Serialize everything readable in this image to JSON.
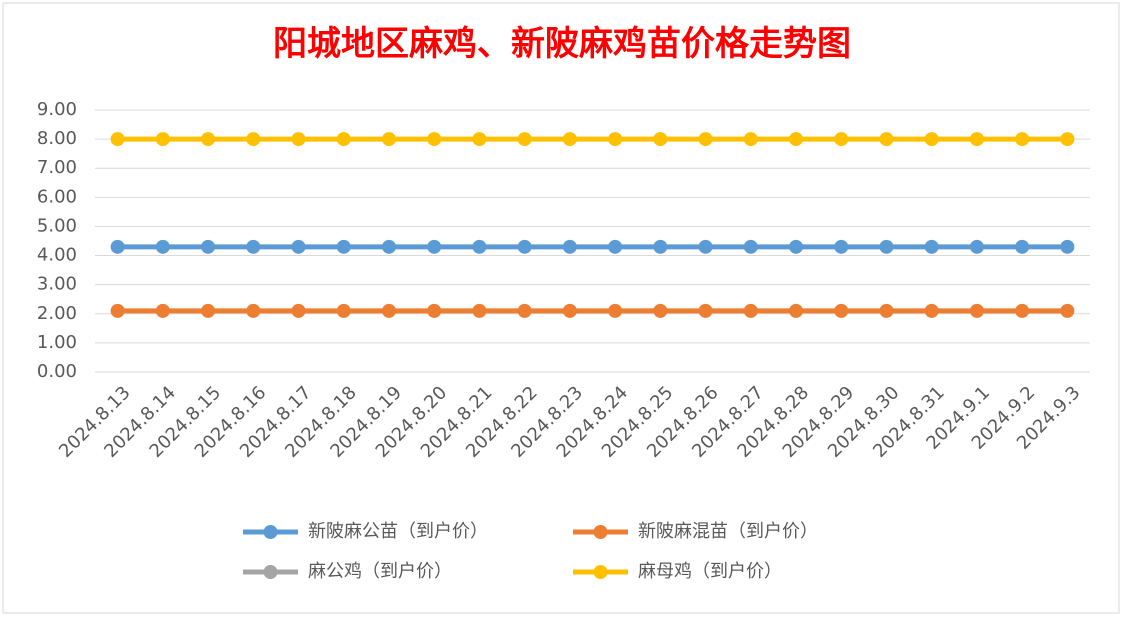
{
  "chart_data": {
    "type": "line",
    "title": "阳城地区麻鸡、新陂麻鸡苗价格走势图",
    "categories": [
      "2024.8.13",
      "2024.8.14",
      "2024.8.15",
      "2024.8.16",
      "2024.8.17",
      "2024.8.18",
      "2024.8.19",
      "2024.8.20",
      "2024.8.21",
      "2024.8.22",
      "2024.8.23",
      "2024.8.24",
      "2024.8.25",
      "2024.8.26",
      "2024.8.27",
      "2024.8.28",
      "2024.8.29",
      "2024.8.30",
      "2024.8.31",
      "2024.9.1",
      "2024.9.2",
      "2024.9.3"
    ],
    "series": [
      {
        "name": "新陂麻公苗（到户价）",
        "color": "#5b9bd5",
        "values": [
          4.3,
          4.3,
          4.3,
          4.3,
          4.3,
          4.3,
          4.3,
          4.3,
          4.3,
          4.3,
          4.3,
          4.3,
          4.3,
          4.3,
          4.3,
          4.3,
          4.3,
          4.3,
          4.3,
          4.3,
          4.3,
          4.3
        ]
      },
      {
        "name": "新陂麻混苗（到户价）",
        "color": "#ed7d31",
        "values": [
          2.1,
          2.1,
          2.1,
          2.1,
          2.1,
          2.1,
          2.1,
          2.1,
          2.1,
          2.1,
          2.1,
          2.1,
          2.1,
          2.1,
          2.1,
          2.1,
          2.1,
          2.1,
          2.1,
          2.1,
          2.1,
          2.1
        ]
      },
      {
        "name": "麻公鸡（到户价）",
        "color": "#a5a5a5",
        "values": [
          null,
          null,
          null,
          null,
          null,
          null,
          null,
          null,
          null,
          null,
          null,
          null,
          null,
          null,
          null,
          null,
          null,
          null,
          null,
          null,
          null,
          null
        ]
      },
      {
        "name": "麻母鸡（到户价）",
        "color": "#ffc000",
        "values": [
          8,
          8,
          8,
          8,
          8,
          8,
          8,
          8,
          8,
          8,
          8,
          8,
          8,
          8,
          8,
          8,
          8,
          8,
          8,
          8,
          8,
          8
        ]
      }
    ],
    "ylim": [
      0,
      9
    ],
    "yticks": [
      {
        "value": 0,
        "label": "0.00"
      },
      {
        "value": 1,
        "label": "1.00"
      },
      {
        "value": 2,
        "label": "2.00"
      },
      {
        "value": 3,
        "label": "3.00"
      },
      {
        "value": 4,
        "label": "4.00"
      },
      {
        "value": 5,
        "label": "5.00"
      },
      {
        "value": 6,
        "label": "6.00"
      },
      {
        "value": 7,
        "label": "7.00"
      },
      {
        "value": 8,
        "label": "8.00"
      },
      {
        "value": 9,
        "label": "9.00"
      }
    ],
    "grid": true
  }
}
